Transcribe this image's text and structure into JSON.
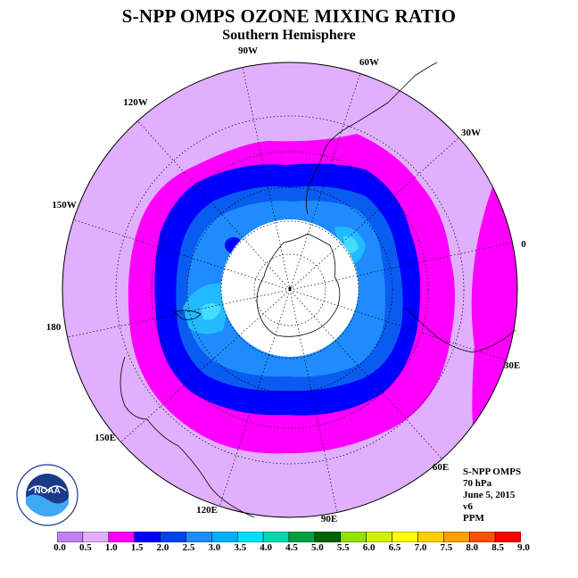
{
  "title": "S-NPP OMPS OZONE MIXING RATIO",
  "subtitle": "Southern Hemisphere",
  "longitude_labels": [
    "90W",
    "60W",
    "30W",
    "0",
    "30E",
    "60E",
    "90E",
    "120E",
    "150E",
    "180",
    "150W",
    "120W"
  ],
  "info": {
    "instrument": "S-NPP OMPS",
    "pressure": "70 hPa",
    "date": "June 5, 2015",
    "version": "v6",
    "units": "PPM"
  },
  "logo_text": "NOAA",
  "colorbar": {
    "ticks": [
      "0.0",
      "0.5",
      "1.0",
      "1.5",
      "2.0",
      "2.5",
      "3.0",
      "3.5",
      "4.0",
      "4.5",
      "5.0",
      "5.5",
      "6.0",
      "6.5",
      "7.0",
      "7.5",
      "8.0",
      "8.5",
      "9.0"
    ],
    "colors": [
      "#c080f0",
      "#e0b0ff",
      "#ff00ff",
      "#0000ff",
      "#0044ee",
      "#1e8cff",
      "#00b0ff",
      "#00e0ff",
      "#00d8b0",
      "#00a040",
      "#006400",
      "#90e000",
      "#d0f000",
      "#ffff00",
      "#ffd000",
      "#ffa000",
      "#ff5000",
      "#ff0000",
      "#8b5a2b"
    ]
  },
  "field_colors": {
    "0.5": "#e0b0ff",
    "1.0": "#ff00ff",
    "1.5": "#0000ff",
    "2.0": "#0a5cf0",
    "2.5": "#1e8cff",
    "3.0": "#22bbff",
    "3.5": "#44ddff"
  }
}
